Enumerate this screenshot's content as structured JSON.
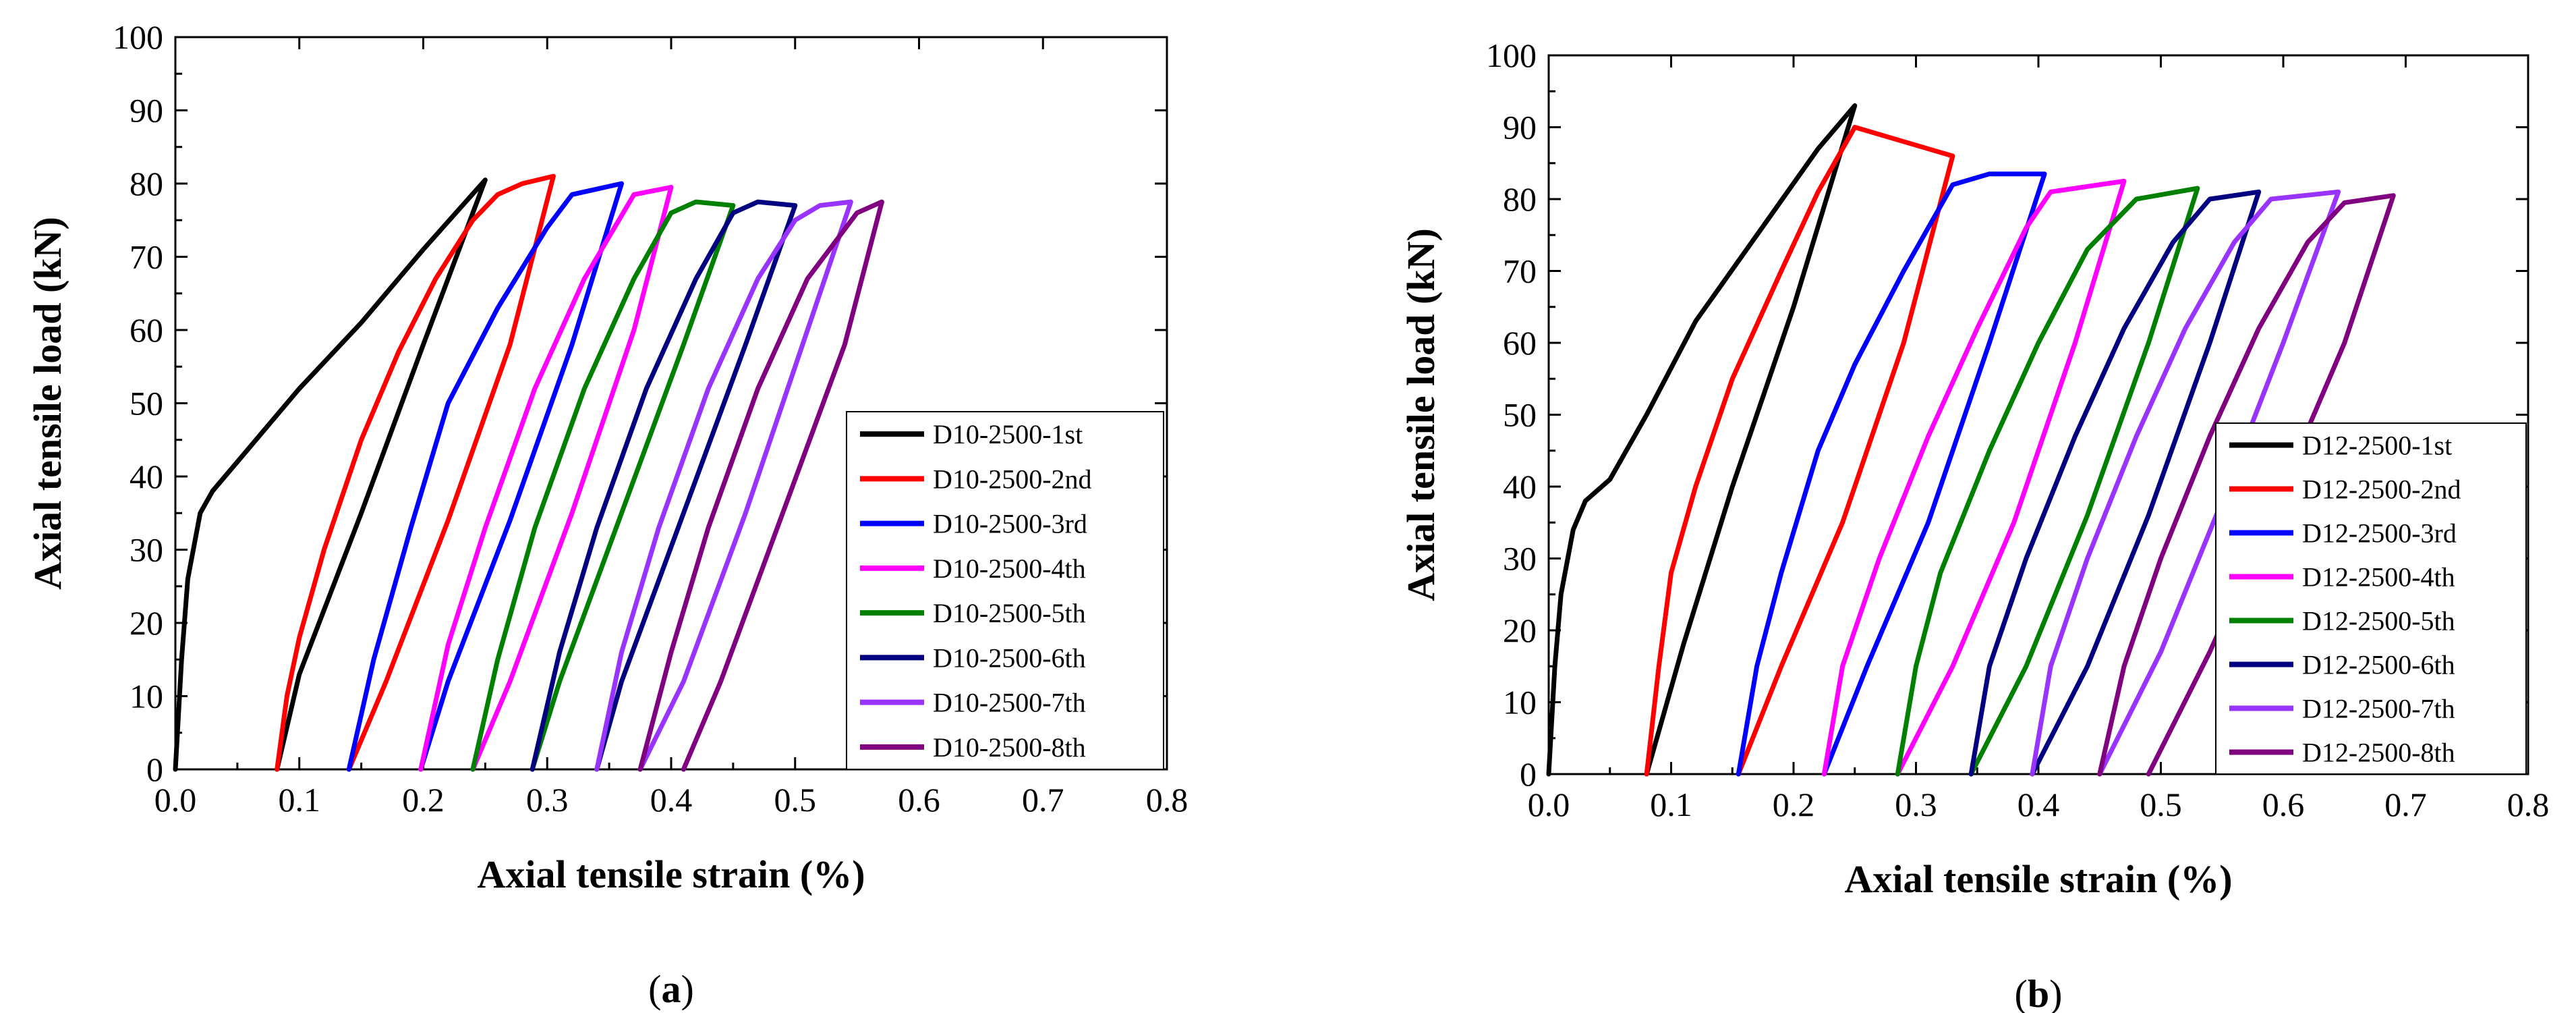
{
  "chart_data": [
    {
      "type": "line",
      "caption": "a",
      "xlabel": "Axial tensile strain (%)",
      "ylabel": "Axial tensile load (kN)",
      "xlim": [
        0.0,
        0.8
      ],
      "ylim": [
        0,
        100
      ],
      "xticks": [
        "0.0",
        "0.1",
        "0.2",
        "0.3",
        "0.4",
        "0.5",
        "0.6",
        "0.7",
        "0.8"
      ],
      "yticks": [
        "0",
        "10",
        "20",
        "30",
        "40",
        "50",
        "60",
        "70",
        "80",
        "90",
        "100"
      ],
      "legend_position": "lower-right",
      "series": [
        {
          "name": "D10-2500-1st",
          "color": "#000000",
          "loading": [
            [
              0.0,
              0
            ],
            [
              0.005,
              15
            ],
            [
              0.01,
              26
            ],
            [
              0.02,
              35
            ],
            [
              0.03,
              38
            ],
            [
              0.05,
              42
            ],
            [
              0.1,
              52
            ],
            [
              0.15,
              61
            ],
            [
              0.2,
              71
            ],
            [
              0.25,
              80.5
            ]
          ],
          "unloading": [
            [
              0.25,
              80.5
            ],
            [
              0.2,
              58
            ],
            [
              0.15,
              35
            ],
            [
              0.1,
              13
            ],
            [
              0.082,
              0
            ]
          ]
        },
        {
          "name": "D10-2500-2nd",
          "color": "#ff0000",
          "loading": [
            [
              0.082,
              0
            ],
            [
              0.09,
              10
            ],
            [
              0.1,
              18
            ],
            [
              0.12,
              30
            ],
            [
              0.15,
              45
            ],
            [
              0.18,
              57
            ],
            [
              0.21,
              67
            ],
            [
              0.24,
              75
            ],
            [
              0.26,
              78.5
            ],
            [
              0.28,
              80
            ],
            [
              0.305,
              81
            ]
          ],
          "unloading": [
            [
              0.31,
              80
            ],
            [
              0.27,
              58
            ],
            [
              0.22,
              34
            ],
            [
              0.17,
              12
            ],
            [
              0.14,
              0
            ]
          ]
        },
        {
          "name": "D10-2500-3rd",
          "color": "#0000ff",
          "loading": [
            [
              0.14,
              0
            ],
            [
              0.16,
              15
            ],
            [
              0.19,
              33
            ],
            [
              0.22,
              50
            ],
            [
              0.26,
              63
            ],
            [
              0.3,
              74
            ],
            [
              0.32,
              78.5
            ],
            [
              0.36,
              80
            ]
          ],
          "unloading": [
            [
              0.36,
              79
            ],
            [
              0.32,
              58
            ],
            [
              0.27,
              34
            ],
            [
              0.22,
              12
            ],
            [
              0.198,
              0
            ]
          ]
        },
        {
          "name": "D10-2500-4th",
          "color": "#ff00ff",
          "loading": [
            [
              0.198,
              0
            ],
            [
              0.22,
              17
            ],
            [
              0.25,
              33
            ],
            [
              0.29,
              52
            ],
            [
              0.33,
              67
            ],
            [
              0.37,
              78.5
            ],
            [
              0.4,
              79.5
            ]
          ],
          "unloading": [
            [
              0.4,
              79
            ],
            [
              0.37,
              60
            ],
            [
              0.32,
              35
            ],
            [
              0.27,
              12
            ],
            [
              0.24,
              0
            ]
          ]
        },
        {
          "name": "D10-2500-5th",
          "color": "#008000",
          "loading": [
            [
              0.24,
              0
            ],
            [
              0.26,
              15
            ],
            [
              0.29,
              33
            ],
            [
              0.33,
              52
            ],
            [
              0.37,
              67
            ],
            [
              0.4,
              76
            ],
            [
              0.42,
              77.5
            ],
            [
              0.45,
              77
            ]
          ],
          "unloading": [
            [
              0.45,
              77
            ],
            [
              0.41,
              58
            ],
            [
              0.36,
              35
            ],
            [
              0.31,
              12
            ],
            [
              0.288,
              0
            ]
          ]
        },
        {
          "name": "D10-2500-6th",
          "color": "#000080",
          "loading": [
            [
              0.288,
              0
            ],
            [
              0.31,
              16
            ],
            [
              0.34,
              33
            ],
            [
              0.38,
              52
            ],
            [
              0.42,
              67
            ],
            [
              0.45,
              76
            ],
            [
              0.47,
              77.5
            ],
            [
              0.5,
              77
            ]
          ],
          "unloading": [
            [
              0.5,
              77
            ],
            [
              0.46,
              58
            ],
            [
              0.41,
              35
            ],
            [
              0.36,
              12
            ],
            [
              0.34,
              0
            ]
          ]
        },
        {
          "name": "D10-2500-7th",
          "color": "#9933ff",
          "loading": [
            [
              0.34,
              0
            ],
            [
              0.36,
              16
            ],
            [
              0.39,
              33
            ],
            [
              0.43,
              52
            ],
            [
              0.47,
              67
            ],
            [
              0.5,
              75
            ],
            [
              0.52,
              77
            ],
            [
              0.545,
              77.5
            ]
          ],
          "unloading": [
            [
              0.545,
              77
            ],
            [
              0.5,
              55
            ],
            [
              0.46,
              35
            ],
            [
              0.41,
              12
            ],
            [
              0.375,
              0
            ]
          ]
        },
        {
          "name": "D10-2500-8th",
          "color": "#800080",
          "loading": [
            [
              0.375,
              0
            ],
            [
              0.4,
              16
            ],
            [
              0.43,
              33
            ],
            [
              0.47,
              52
            ],
            [
              0.51,
              67
            ],
            [
              0.55,
              76
            ],
            [
              0.57,
              77.5
            ]
          ],
          "unloading": [
            [
              0.57,
              77
            ],
            [
              0.54,
              58
            ],
            [
              0.49,
              35
            ],
            [
              0.44,
              12
            ],
            [
              0.41,
              0
            ]
          ]
        }
      ],
      "legend": [
        "D10-2500-1st",
        "D10-2500-2nd",
        "D10-2500-3rd",
        "D10-2500-4th",
        "D10-2500-5th",
        "D10-2500-6th",
        "D10-2500-7th",
        "D10-2500-8th"
      ]
    },
    {
      "type": "line",
      "caption": "b",
      "xlabel": "Axial tensile strain (%)",
      "ylabel": "Axial tensile load (kN)",
      "xlim": [
        0.0,
        0.8
      ],
      "ylim": [
        0,
        100
      ],
      "xticks": [
        "0.0",
        "0.1",
        "0.2",
        "0.3",
        "0.4",
        "0.5",
        "0.6",
        "0.7",
        "0.8"
      ],
      "yticks": [
        "0",
        "10",
        "20",
        "30",
        "40",
        "50",
        "60",
        "70",
        "80",
        "90",
        "100"
      ],
      "legend_position": "lower-right",
      "series": [
        {
          "name": "D12-2500-1st",
          "color": "#000000",
          "loading": [
            [
              0.0,
              0
            ],
            [
              0.005,
              15
            ],
            [
              0.01,
              25
            ],
            [
              0.02,
              34
            ],
            [
              0.03,
              38
            ],
            [
              0.05,
              41
            ],
            [
              0.08,
              50
            ],
            [
              0.12,
              63
            ],
            [
              0.17,
              75
            ],
            [
              0.22,
              87
            ],
            [
              0.25,
              93
            ]
          ],
          "unloading": [
            [
              0.25,
              93
            ],
            [
              0.2,
              65
            ],
            [
              0.15,
              40
            ],
            [
              0.11,
              18
            ],
            [
              0.08,
              0
            ]
          ]
        },
        {
          "name": "D12-2500-2nd",
          "color": "#ff0000",
          "loading": [
            [
              0.08,
              0
            ],
            [
              0.09,
              15
            ],
            [
              0.1,
              28
            ],
            [
              0.12,
              40
            ],
            [
              0.15,
              55
            ],
            [
              0.19,
              70
            ],
            [
              0.22,
              81
            ],
            [
              0.25,
              90
            ],
            [
              0.29,
              88
            ],
            [
              0.32,
              86.5
            ],
            [
              0.33,
              86
            ]
          ],
          "unloading": [
            [
              0.33,
              86
            ],
            [
              0.29,
              60
            ],
            [
              0.24,
              35
            ],
            [
              0.19,
              15
            ],
            [
              0.155,
              0
            ]
          ]
        },
        {
          "name": "D12-2500-3rd",
          "color": "#0000ff",
          "loading": [
            [
              0.155,
              0
            ],
            [
              0.17,
              15
            ],
            [
              0.19,
              28
            ],
            [
              0.22,
              45
            ],
            [
              0.25,
              57
            ],
            [
              0.29,
              70
            ],
            [
              0.33,
              82
            ],
            [
              0.36,
              83.5
            ],
            [
              0.405,
              83.5
            ]
          ],
          "unloading": [
            [
              0.405,
              83.5
            ],
            [
              0.36,
              60
            ],
            [
              0.31,
              35
            ],
            [
              0.26,
              15
            ],
            [
              0.225,
              0
            ]
          ]
        },
        {
          "name": "D12-2500-4th",
          "color": "#ff00ff",
          "loading": [
            [
              0.225,
              0
            ],
            [
              0.24,
              15
            ],
            [
              0.27,
              30
            ],
            [
              0.31,
              47
            ],
            [
              0.35,
              62
            ],
            [
              0.39,
              76
            ],
            [
              0.41,
              81
            ],
            [
              0.47,
              82.5
            ]
          ],
          "unloading": [
            [
              0.47,
              82
            ],
            [
              0.43,
              60
            ],
            [
              0.38,
              35
            ],
            [
              0.33,
              15
            ],
            [
              0.285,
              0
            ]
          ]
        },
        {
          "name": "D12-2500-5th",
          "color": "#008000",
          "loading": [
            [
              0.285,
              0
            ],
            [
              0.3,
              15
            ],
            [
              0.32,
              28
            ],
            [
              0.36,
              45
            ],
            [
              0.4,
              60
            ],
            [
              0.44,
              73
            ],
            [
              0.48,
              80
            ],
            [
              0.53,
              81.5
            ]
          ],
          "unloading": [
            [
              0.53,
              81.5
            ],
            [
              0.49,
              60
            ],
            [
              0.44,
              36
            ],
            [
              0.39,
              15
            ],
            [
              0.345,
              0
            ]
          ]
        },
        {
          "name": "D12-2500-6th",
          "color": "#000080",
          "loading": [
            [
              0.345,
              0
            ],
            [
              0.36,
              15
            ],
            [
              0.39,
              30
            ],
            [
              0.43,
              47
            ],
            [
              0.47,
              62
            ],
            [
              0.51,
              74
            ],
            [
              0.54,
              80
            ],
            [
              0.58,
              81
            ]
          ],
          "unloading": [
            [
              0.58,
              81
            ],
            [
              0.54,
              60
            ],
            [
              0.49,
              36
            ],
            [
              0.44,
              15
            ],
            [
              0.395,
              0
            ]
          ]
        },
        {
          "name": "D12-2500-7th",
          "color": "#9933ff",
          "loading": [
            [
              0.395,
              0
            ],
            [
              0.41,
              15
            ],
            [
              0.44,
              30
            ],
            [
              0.48,
              47
            ],
            [
              0.52,
              62
            ],
            [
              0.56,
              74
            ],
            [
              0.59,
              80
            ],
            [
              0.645,
              81
            ]
          ],
          "unloading": [
            [
              0.645,
              81
            ],
            [
              0.6,
              60
            ],
            [
              0.55,
              38
            ],
            [
              0.5,
              17
            ],
            [
              0.45,
              0
            ]
          ]
        },
        {
          "name": "D12-2500-8th",
          "color": "#800080",
          "loading": [
            [
              0.45,
              0
            ],
            [
              0.47,
              15
            ],
            [
              0.5,
              30
            ],
            [
              0.54,
              47
            ],
            [
              0.58,
              62
            ],
            [
              0.62,
              74
            ],
            [
              0.65,
              79.5
            ],
            [
              0.69,
              80.5
            ]
          ],
          "unloading": [
            [
              0.69,
              80.5
            ],
            [
              0.65,
              60
            ],
            [
              0.59,
              36
            ],
            [
              0.54,
              17
            ],
            [
              0.49,
              0
            ]
          ]
        }
      ],
      "legend": [
        "D12-2500-1st",
        "D12-2500-2nd",
        "D12-2500-3rd",
        "D12-2500-4th",
        "D12-2500-5th",
        "D12-2500-6th",
        "D12-2500-7th",
        "D12-2500-8th"
      ]
    }
  ]
}
